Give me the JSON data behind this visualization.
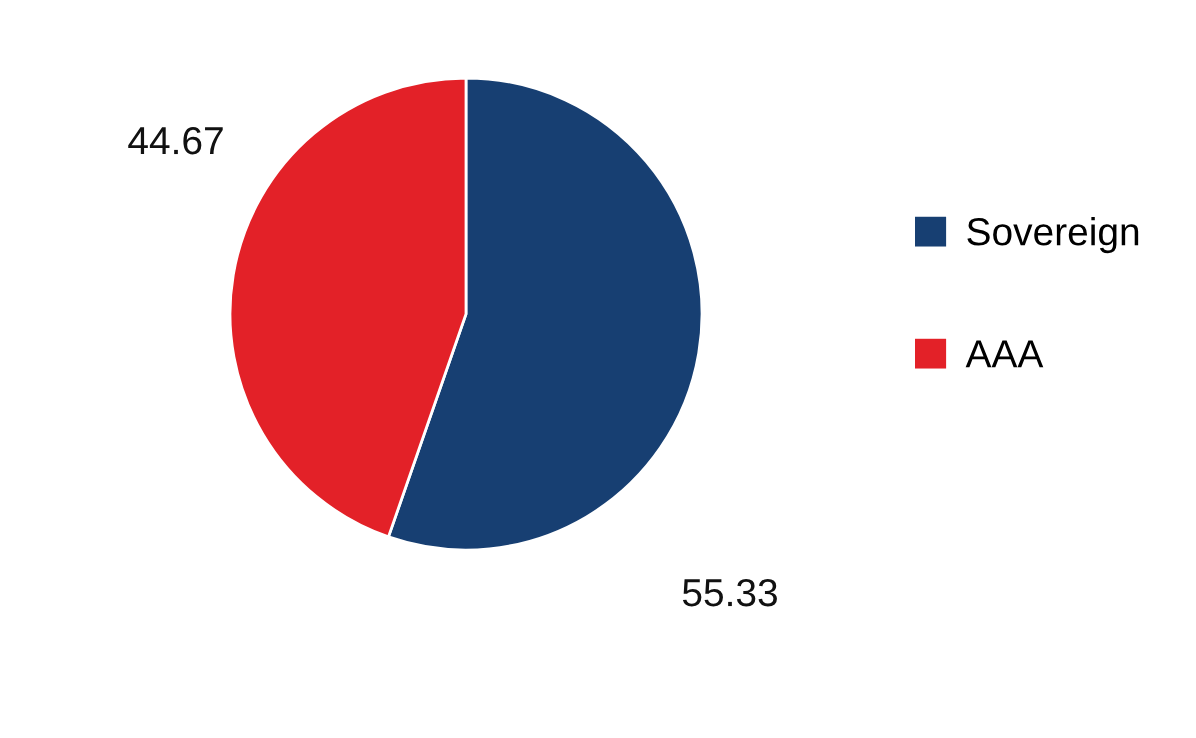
{
  "chart_data": {
    "type": "pie",
    "categories": [
      "Sovereign",
      "AAA"
    ],
    "values": [
      55.33,
      44.67
    ],
    "colors": [
      "#173f72",
      "#e32128"
    ],
    "data_labels": true,
    "legend": "right"
  }
}
